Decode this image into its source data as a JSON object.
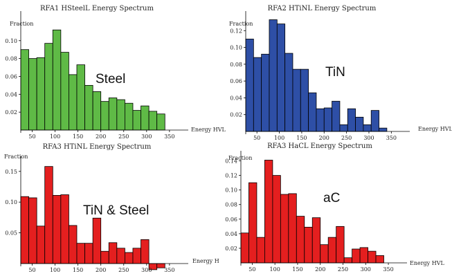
{
  "chart_data": [
    {
      "type": "bar",
      "title": "RFA1 HSteelL Energy Spectrum",
      "ylabel": "Fraction",
      "xlabel": "Energy HVL",
      "annotation": "Steel",
      "color": "#5fba46",
      "x_bin_start": 25,
      "x_bin_width": 17.5,
      "xlim": [
        25,
        385
      ],
      "ylim": [
        0,
        0.13
      ],
      "x_ticks": [
        50,
        100,
        150,
        200,
        250,
        300,
        350
      ],
      "y_ticks": [
        0.02,
        0.04,
        0.06,
        0.08,
        0.1
      ],
      "y_tick_labels": [
        "0.02",
        "0.04",
        "0.06",
        "0.08",
        "0.10"
      ],
      "values": [
        0.09,
        0.08,
        0.081,
        0.097,
        0.112,
        0.087,
        0.062,
        0.073,
        0.05,
        0.043,
        0.032,
        0.036,
        0.034,
        0.03,
        0.022,
        0.027,
        0.021,
        0.018
      ]
    },
    {
      "type": "bar",
      "title": "RFA2 HTiNL Energy Spectrum",
      "ylabel": "Fraction",
      "xlabel": "Energy HVL",
      "annotation": "TiN",
      "color": "#2e4fa6",
      "x_bin_start": 25,
      "x_bin_width": 17.5,
      "xlim": [
        25,
        385
      ],
      "ylim": [
        0,
        0.14
      ],
      "x_ticks": [
        50,
        100,
        150,
        200,
        250,
        300,
        350
      ],
      "y_ticks": [
        0.02,
        0.04,
        0.06,
        0.08,
        0.1,
        0.12
      ],
      "y_tick_labels": [
        "0.02",
        "0.04",
        "0.06",
        "0.08",
        "0.10",
        "0.12"
      ],
      "values": [
        0.11,
        0.088,
        0.092,
        0.133,
        0.128,
        0.093,
        0.074,
        0.074,
        0.046,
        0.027,
        0.028,
        0.036,
        0.008,
        0.027,
        0.017,
        0.008,
        0.025,
        0.004
      ]
    },
    {
      "type": "bar",
      "title": "RFA3 HTiNL Energy Spectrum",
      "ylabel": "Fraction",
      "xlabel": "Energy H",
      "annotation": "TiN & Steel",
      "color": "#e41f1f",
      "x_bin_start": 25,
      "x_bin_width": 17.5,
      "xlim": [
        25,
        385
      ],
      "ylim": [
        -0.02,
        0.17
      ],
      "x_ticks": [
        50,
        100,
        150,
        200,
        250,
        300,
        350
      ],
      "y_ticks": [
        0.05,
        0.1,
        0.15
      ],
      "y_tick_labels": [
        "0.05",
        "0.10",
        "0.15"
      ],
      "x_tick_overrides": {
        "250": "250"
      },
      "values": [
        0.109,
        0.107,
        0.061,
        0.158,
        0.111,
        0.112,
        0.062,
        0.033,
        0.033,
        0.074,
        0.02,
        0.034,
        0.025,
        0.018,
        0.025,
        0.039,
        -0.01,
        -0.007
      ]
    },
    {
      "type": "bar",
      "title": "RFA3 HaCL Energy Spectrum",
      "ylabel": "Fraction",
      "xlabel": "Energy HVL",
      "annotation": "aC",
      "color": "#e41f1f",
      "x_bin_start": 25,
      "x_bin_width": 17.5,
      "xlim": [
        25,
        385
      ],
      "ylim": [
        0,
        0.15
      ],
      "x_ticks": [
        50,
        100,
        150,
        200,
        250,
        300,
        350
      ],
      "y_ticks": [
        0.02,
        0.04,
        0.06,
        0.08,
        0.1,
        0.12,
        0.14
      ],
      "y_tick_labels": [
        "0.02",
        "0.04",
        "0.06",
        "0.08",
        "0.10",
        "0.12",
        "0.14"
      ],
      "values": [
        0.041,
        0.11,
        0.035,
        0.141,
        0.12,
        0.094,
        0.095,
        0.064,
        0.049,
        0.062,
        0.025,
        0.035,
        0.05,
        0.007,
        0.019,
        0.021,
        0.016,
        0.01
      ]
    }
  ]
}
